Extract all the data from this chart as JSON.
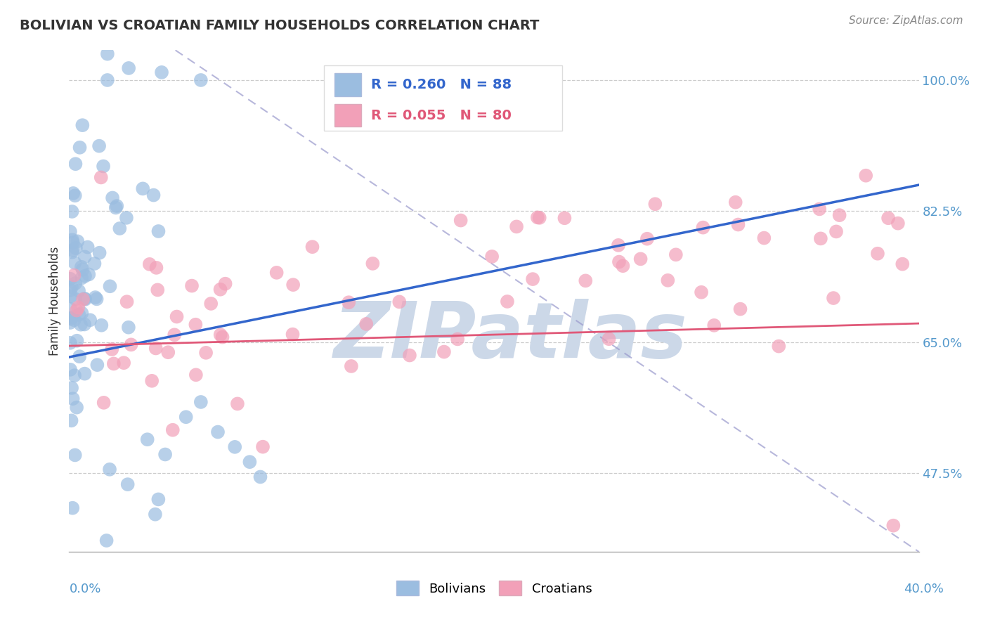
{
  "title": "BOLIVIAN VS CROATIAN FAMILY HOUSEHOLDS CORRELATION CHART",
  "source_text": "Source: ZipAtlas.com",
  "ylabel": "Family Households",
  "y_ticks": [
    47.5,
    65.0,
    82.5,
    100.0
  ],
  "y_tick_labels": [
    "47.5%",
    "65.0%",
    "82.5%",
    "100.0%"
  ],
  "x_range": [
    0.0,
    40.0
  ],
  "y_range": [
    37.0,
    104.0
  ],
  "blue_R": 0.26,
  "blue_N": 88,
  "pink_R": 0.055,
  "pink_N": 80,
  "blue_color": "#9bbde0",
  "pink_color": "#f2a0b8",
  "blue_line_color": "#3366cc",
  "pink_line_color": "#e05878",
  "diag_line_color": "#9999cc",
  "watermark_color": "#ccd8e8",
  "background_color": "#ffffff",
  "grid_color": "#cccccc",
  "blue_line_x0": 0.0,
  "blue_line_y0": 63.0,
  "blue_line_x1": 40.0,
  "blue_line_y1": 86.0,
  "pink_line_x0": 0.0,
  "pink_line_y0": 64.5,
  "pink_line_x1": 40.0,
  "pink_line_y1": 67.5,
  "diag_x0": 5.0,
  "diag_y0": 104.0,
  "diag_x1": 40.0,
  "diag_y1": 37.0
}
